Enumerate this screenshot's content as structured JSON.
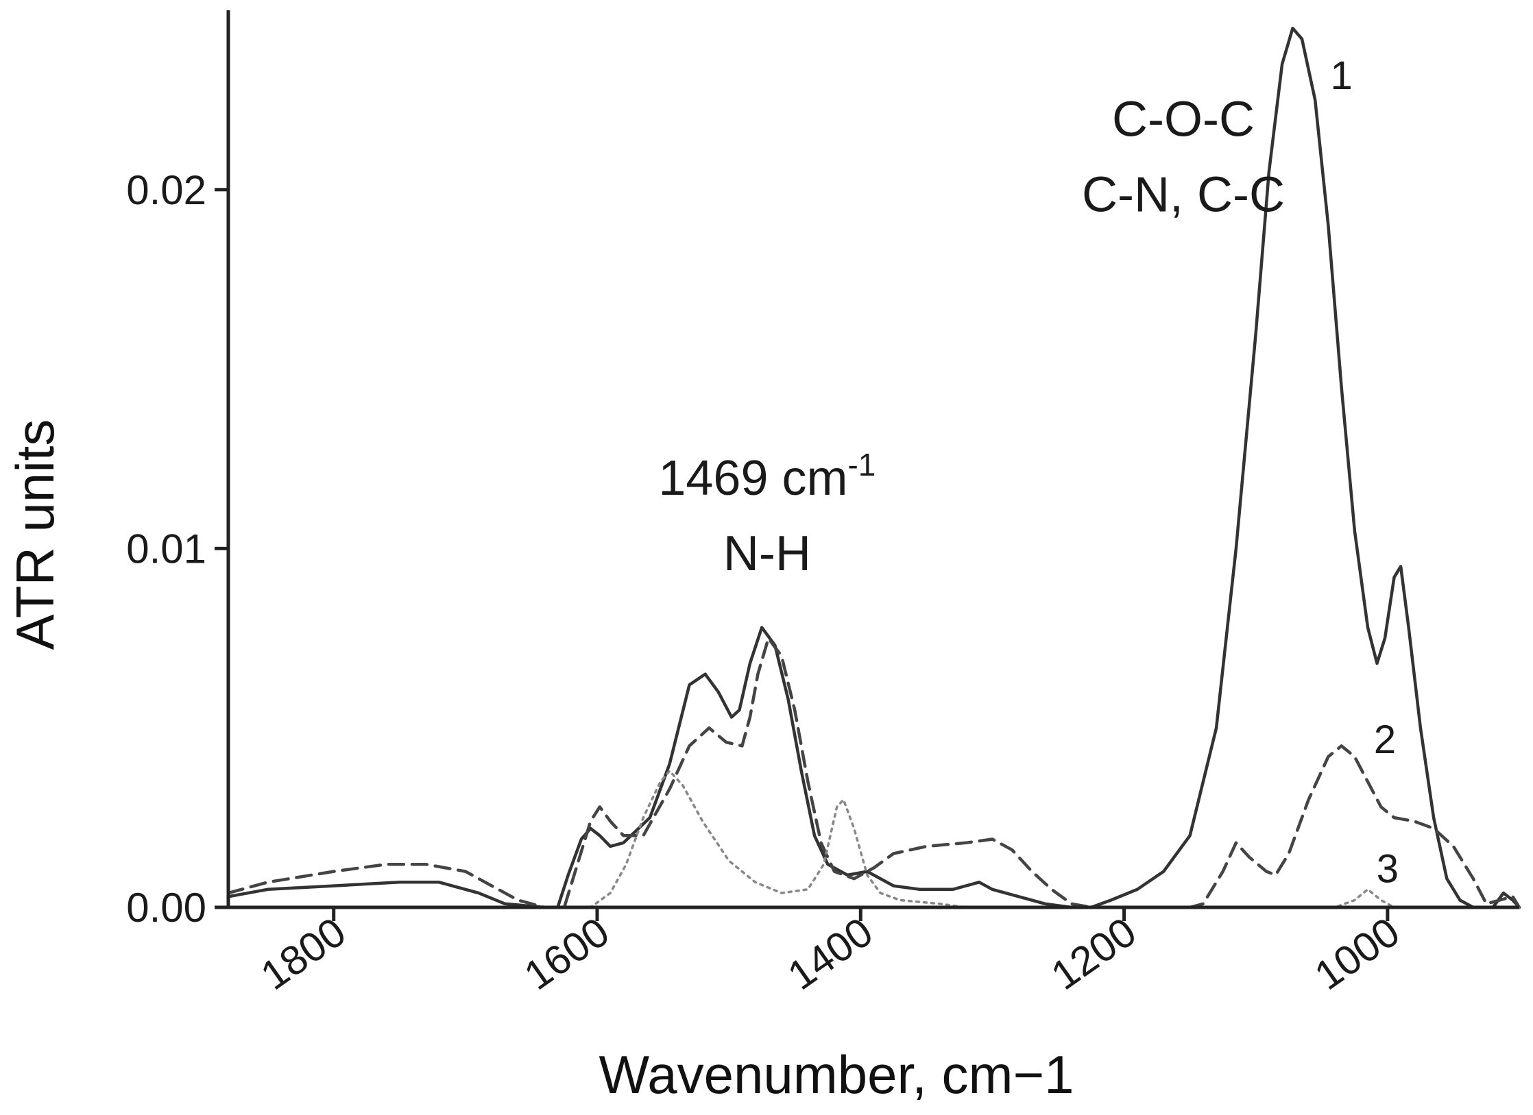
{
  "chart_data": {
    "type": "line",
    "xlabel": "Wavenumber, cm−1",
    "ylabel": "ATR units",
    "xlim": [
      1880,
      900
    ],
    "ylim": [
      0,
      0.025
    ],
    "x_reversed": true,
    "x_ticks": [
      1800,
      1600,
      1400,
      1200,
      1000
    ],
    "y_ticks": [
      0,
      0.01,
      0.02
    ],
    "x_tick_labels": [
      "1800",
      "1600",
      "1400",
      "1200",
      "1000"
    ],
    "y_tick_labels": [
      "0.00",
      "0.01",
      "0.02"
    ],
    "grid": false,
    "annotations": [
      {
        "line1": "1469 cm",
        "sup": "-1",
        "line2": "N-H",
        "at_x": 1471,
        "at_y": 0.0115
      },
      {
        "line1": "C-O-C",
        "line2": "C-N, C-C",
        "at_x": 1155,
        "at_y": 0.0215
      }
    ],
    "series": [
      {
        "name": "1",
        "style": "solid",
        "color": "#333333",
        "label_at": [
          1035,
          0.0228
        ],
        "points": [
          [
            1880,
            0.0003
          ],
          [
            1850,
            0.0005
          ],
          [
            1800,
            0.0006
          ],
          [
            1750,
            0.0007
          ],
          [
            1720,
            0.0007
          ],
          [
            1690,
            0.0004
          ],
          [
            1670,
            0.0001
          ],
          [
            1640,
            0.0
          ],
          [
            1630,
            0.0
          ],
          [
            1622,
            0.0009
          ],
          [
            1612,
            0.0019
          ],
          [
            1605,
            0.0022
          ],
          [
            1598,
            0.002
          ],
          [
            1590,
            0.0017
          ],
          [
            1580,
            0.0018
          ],
          [
            1560,
            0.0025
          ],
          [
            1545,
            0.004
          ],
          [
            1530,
            0.0062
          ],
          [
            1518,
            0.0065
          ],
          [
            1508,
            0.006
          ],
          [
            1498,
            0.0053
          ],
          [
            1492,
            0.0055
          ],
          [
            1484,
            0.0068
          ],
          [
            1475,
            0.0078
          ],
          [
            1465,
            0.0073
          ],
          [
            1455,
            0.0058
          ],
          [
            1445,
            0.0038
          ],
          [
            1435,
            0.002
          ],
          [
            1425,
            0.0012
          ],
          [
            1410,
            0.0009
          ],
          [
            1395,
            0.001
          ],
          [
            1385,
            0.0008
          ],
          [
            1375,
            0.0006
          ],
          [
            1355,
            0.0005
          ],
          [
            1330,
            0.0005
          ],
          [
            1310,
            0.0007
          ],
          [
            1300,
            0.0005
          ],
          [
            1280,
            0.0003
          ],
          [
            1260,
            0.0001
          ],
          [
            1240,
            0.0
          ],
          [
            1225,
            0.0
          ],
          [
            1210,
            0.0002
          ],
          [
            1190,
            0.0005
          ],
          [
            1170,
            0.001
          ],
          [
            1150,
            0.002
          ],
          [
            1130,
            0.005
          ],
          [
            1115,
            0.01
          ],
          [
            1100,
            0.016
          ],
          [
            1090,
            0.0205
          ],
          [
            1080,
            0.0235
          ],
          [
            1072,
            0.0245
          ],
          [
            1065,
            0.0242
          ],
          [
            1055,
            0.0225
          ],
          [
            1045,
            0.019
          ],
          [
            1035,
            0.0145
          ],
          [
            1025,
            0.0105
          ],
          [
            1015,
            0.0078
          ],
          [
            1008,
            0.0068
          ],
          [
            1002,
            0.0075
          ],
          [
            995,
            0.0092
          ],
          [
            990,
            0.0095
          ],
          [
            984,
            0.0078
          ],
          [
            975,
            0.005
          ],
          [
            965,
            0.0025
          ],
          [
            955,
            0.0008
          ],
          [
            945,
            0.0002
          ],
          [
            935,
            0.0
          ],
          [
            920,
            0.0
          ],
          [
            912,
            0.0004
          ],
          [
            905,
            0.0002
          ],
          [
            900,
            0.0
          ]
        ]
      },
      {
        "name": "2",
        "style": "dashed",
        "color": "#444444",
        "label_at": [
          1002,
          0.0043
        ],
        "points": [
          [
            1880,
            0.0004
          ],
          [
            1850,
            0.0007
          ],
          [
            1800,
            0.001
          ],
          [
            1760,
            0.0012
          ],
          [
            1730,
            0.0012
          ],
          [
            1700,
            0.001
          ],
          [
            1680,
            0.0006
          ],
          [
            1660,
            0.0002
          ],
          [
            1640,
            0.0
          ],
          [
            1625,
            0.0
          ],
          [
            1615,
            0.0012
          ],
          [
            1605,
            0.0024
          ],
          [
            1598,
            0.0028
          ],
          [
            1590,
            0.0024
          ],
          [
            1580,
            0.002
          ],
          [
            1565,
            0.002
          ],
          [
            1545,
            0.0033
          ],
          [
            1530,
            0.0045
          ],
          [
            1515,
            0.005
          ],
          [
            1502,
            0.0046
          ],
          [
            1490,
            0.0045
          ],
          [
            1484,
            0.0053
          ],
          [
            1478,
            0.0065
          ],
          [
            1470,
            0.0075
          ],
          [
            1460,
            0.007
          ],
          [
            1450,
            0.0055
          ],
          [
            1440,
            0.0035
          ],
          [
            1430,
            0.0018
          ],
          [
            1420,
            0.001
          ],
          [
            1405,
            0.0008
          ],
          [
            1390,
            0.0011
          ],
          [
            1375,
            0.0015
          ],
          [
            1350,
            0.0017
          ],
          [
            1320,
            0.0018
          ],
          [
            1300,
            0.0019
          ],
          [
            1285,
            0.0016
          ],
          [
            1270,
            0.001
          ],
          [
            1255,
            0.0005
          ],
          [
            1240,
            0.0001
          ],
          [
            1225,
            0.0
          ],
          [
            1150,
            0.0
          ],
          [
            1140,
            0.0001
          ],
          [
            1125,
            0.001
          ],
          [
            1115,
            0.0018
          ],
          [
            1105,
            0.0014
          ],
          [
            1092,
            0.001
          ],
          [
            1085,
            0.0009
          ],
          [
            1075,
            0.0015
          ],
          [
            1060,
            0.003
          ],
          [
            1045,
            0.0042
          ],
          [
            1035,
            0.0045
          ],
          [
            1025,
            0.0042
          ],
          [
            1015,
            0.0035
          ],
          [
            1005,
            0.0028
          ],
          [
            995,
            0.0025
          ],
          [
            980,
            0.0024
          ],
          [
            965,
            0.0022
          ],
          [
            950,
            0.0017
          ],
          [
            935,
            0.0008
          ],
          [
            925,
            0.0001
          ],
          [
            915,
            0.0002
          ],
          [
            905,
            0.0003
          ],
          [
            900,
            0.0
          ]
        ]
      },
      {
        "name": "3",
        "style": "dotted",
        "color": "#888888",
        "label_at": [
          1000,
          0.0007
        ],
        "points": [
          [
            1640,
            0.0
          ],
          [
            1605,
            0.0
          ],
          [
            1590,
            0.0004
          ],
          [
            1578,
            0.0012
          ],
          [
            1565,
            0.0025
          ],
          [
            1552,
            0.0035
          ],
          [
            1545,
            0.0038
          ],
          [
            1535,
            0.0034
          ],
          [
            1520,
            0.0024
          ],
          [
            1500,
            0.0013
          ],
          [
            1480,
            0.0007
          ],
          [
            1460,
            0.0004
          ],
          [
            1440,
            0.0005
          ],
          [
            1428,
            0.0012
          ],
          [
            1418,
            0.0028
          ],
          [
            1413,
            0.003
          ],
          [
            1405,
            0.0022
          ],
          [
            1395,
            0.0009
          ],
          [
            1385,
            0.0004
          ],
          [
            1370,
            0.0002
          ],
          [
            1340,
            0.0001
          ],
          [
            1320,
            0.0
          ],
          [
            1300,
            0.0
          ],
          [
            1040,
            0.0
          ],
          [
            1025,
            0.0002
          ],
          [
            1015,
            0.0005
          ],
          [
            1005,
            0.0002
          ],
          [
            995,
            0.0
          ],
          [
            900,
            0.0
          ]
        ]
      }
    ]
  }
}
